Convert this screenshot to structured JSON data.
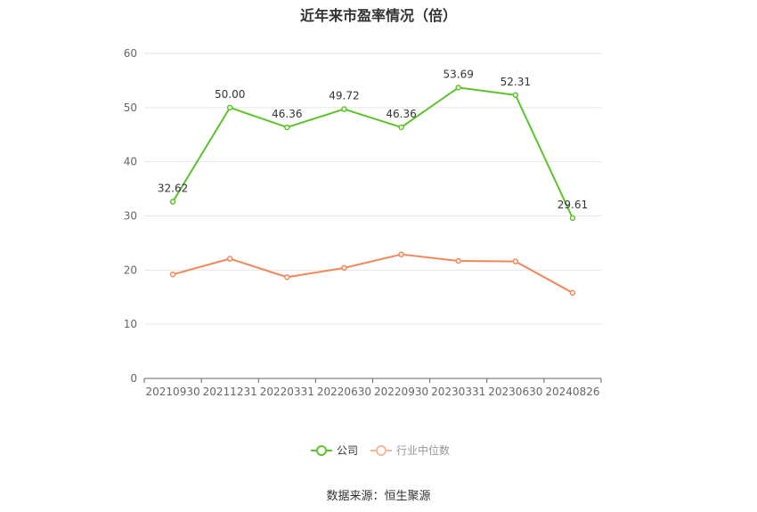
{
  "title": "近年来市盈率情况（倍）",
  "source": "数据来源：恒生聚源",
  "chart_data": {
    "type": "line",
    "categories": [
      "20210930",
      "20211231",
      "20220331",
      "20220630",
      "20220930",
      "20230331",
      "20230630",
      "20240826"
    ],
    "ylim": [
      0,
      60
    ],
    "yticks": [
      0,
      10,
      20,
      30,
      40,
      50,
      60
    ],
    "grid": true,
    "legend_position": "bottom",
    "series": [
      {
        "name": "公司",
        "color": "#5dc22c",
        "values": [
          32.62,
          50.0,
          46.36,
          49.72,
          46.36,
          53.69,
          52.31,
          29.61
        ],
        "labels": [
          "32.62",
          "50.00",
          "46.36",
          "49.72",
          "46.36",
          "53.69",
          "52.31",
          "29.61"
        ]
      },
      {
        "name": "行业中位数",
        "color": "#f0875a",
        "values": [
          19.2,
          22.1,
          18.7,
          20.4,
          22.9,
          21.7,
          21.6,
          15.8
        ]
      }
    ]
  }
}
